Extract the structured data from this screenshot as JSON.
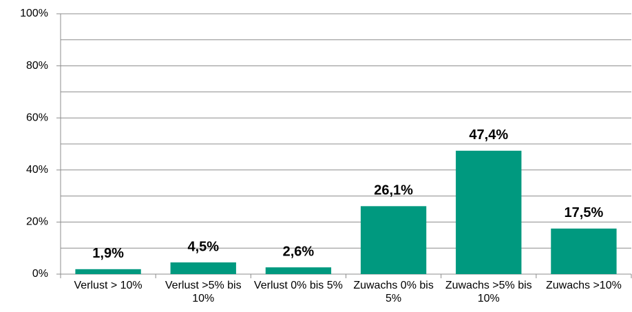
{
  "chart_data": {
    "type": "bar",
    "categories": [
      "Verlust > 10%",
      "Verlust >5% bis 10%",
      "Verlust 0% bis 5%",
      "Zuwachs 0% bis 5%",
      "Zuwachs >5% bis 10%",
      "Zuwachs >10%"
    ],
    "values": [
      1.9,
      4.5,
      2.6,
      26.1,
      47.4,
      17.5
    ],
    "value_labels": [
      "1,9%",
      "4,5%",
      "2,6%",
      "26,1%",
      "47,4%",
      "17,5%"
    ],
    "color": "#00997f",
    "ylim": [
      0,
      100
    ],
    "yticks": [
      {
        "value": 0,
        "label": "0%"
      },
      {
        "value": 20,
        "label": "20%"
      },
      {
        "value": 40,
        "label": "40%"
      },
      {
        "value": 60,
        "label": "60%"
      },
      {
        "value": 80,
        "label": "80%"
      },
      {
        "value": 100,
        "label": "100%"
      }
    ],
    "yminor": [
      10,
      30,
      50,
      70,
      90
    ],
    "grid": true
  }
}
